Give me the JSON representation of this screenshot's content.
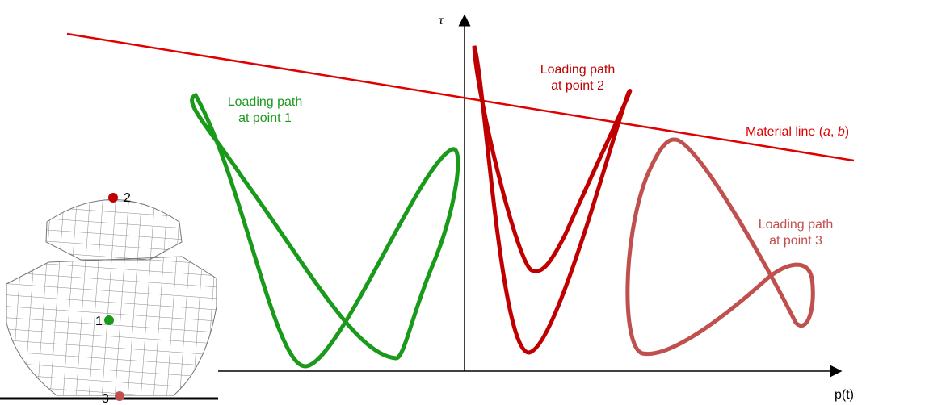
{
  "axes": {
    "y_label": "τ",
    "x_label": "p(t)"
  },
  "material_line": {
    "label": [
      "Material line (",
      "a",
      ", ",
      "b",
      ")"
    ]
  },
  "paths": [
    {
      "label": [
        "Loading path",
        "at point 1"
      ]
    },
    {
      "label": [
        "Loading path",
        "at point 2"
      ]
    },
    {
      "label": [
        "Loading path",
        "at point 3"
      ]
    }
  ],
  "mesh_points": [
    "1",
    "2",
    "3"
  ]
}
